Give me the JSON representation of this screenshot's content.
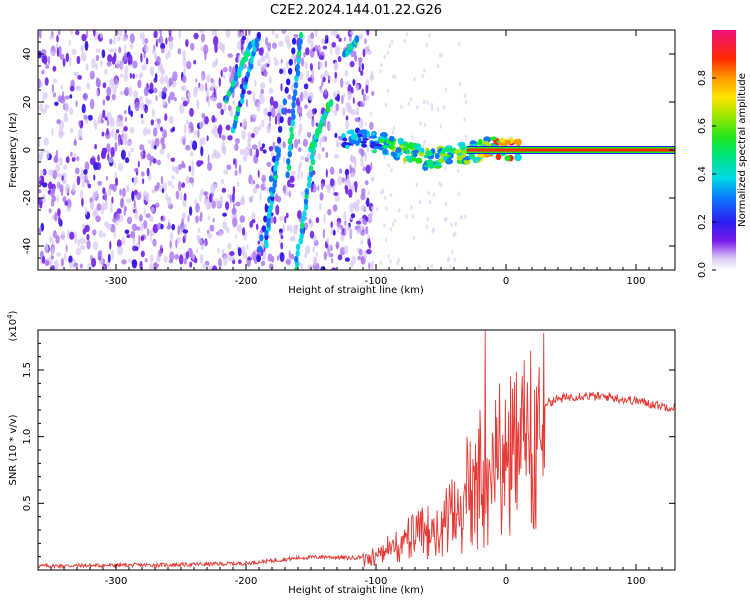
{
  "title": "C2E2.2024.144.01.22.G26",
  "chart_data": [
    {
      "type": "heatmap",
      "xlabel": "Height of straight line (km)",
      "ylabel": "Frequency (Hz)",
      "xlim": [
        -360,
        130
      ],
      "ylim": [
        -50,
        50
      ],
      "x_ticks": [
        -300,
        -200,
        -100,
        0,
        100
      ],
      "x_tick_labels": [
        "-300",
        "-200",
        "-100",
        "0",
        "100"
      ],
      "y_ticks": [
        -40,
        -20,
        0,
        20,
        40
      ],
      "y_tick_labels": [
        "-40",
        "-20",
        "0",
        "20",
        "40"
      ],
      "colorbar": {
        "label": "Normalized spectral amplitude",
        "range": [
          0,
          1
        ],
        "ticks": [
          0,
          0.2,
          0.4,
          0.6,
          0.8
        ],
        "tick_labels": [
          "0.0",
          "0.2",
          "0.4",
          "0.6",
          "0.8"
        ]
      },
      "noise_region_x": [
        -360,
        -110
      ],
      "streaks": [
        {
          "x1": -215,
          "y1": 21,
          "x2": -195,
          "y2": 45,
          "amp": 0.35
        },
        {
          "x1": -210,
          "y1": 8,
          "x2": -190,
          "y2": 48,
          "amp": 0.3
        },
        {
          "x1": -190,
          "y1": -45,
          "x2": -163,
          "y2": 45,
          "amp": 0.2
        },
        {
          "x1": -185,
          "y1": -40,
          "x2": -175,
          "y2": 0,
          "amp": 0.3
        },
        {
          "x1": -162,
          "y1": -50,
          "x2": -147,
          "y2": 2,
          "amp": 0.35
        },
        {
          "x1": -168,
          "y1": -10,
          "x2": -158,
          "y2": 48,
          "amp": 0.35
        },
        {
          "x1": -150,
          "y1": 0,
          "x2": -135,
          "y2": 20,
          "amp": 0.4
        },
        {
          "x1": -124,
          "y1": 40,
          "x2": -114,
          "y2": 46,
          "amp": 0.35
        }
      ],
      "signal_track": [
        {
          "x": -125,
          "y": 5,
          "amp": 0.3
        },
        {
          "x": -110,
          "y": 4,
          "amp": 0.35
        },
        {
          "x": -100,
          "y": 3,
          "amp": 0.4
        },
        {
          "x": -90,
          "y": 2,
          "amp": 0.45
        },
        {
          "x": -80,
          "y": 0,
          "amp": 0.5
        },
        {
          "x": -70,
          "y": -2,
          "amp": 0.5
        },
        {
          "x": -60,
          "y": -4,
          "amp": 0.5
        },
        {
          "x": -50,
          "y": -3,
          "amp": 0.55
        },
        {
          "x": -40,
          "y": -2,
          "amp": 0.55
        },
        {
          "x": -30,
          "y": -1,
          "amp": 0.6
        },
        {
          "x": -20,
          "y": 0,
          "amp": 0.65
        },
        {
          "x": -10,
          "y": 1,
          "amp": 0.7
        },
        {
          "x": 0,
          "y": 0,
          "amp": 0.8
        },
        {
          "x": 10,
          "y": 0,
          "amp": 0.9
        }
      ],
      "carrier": {
        "x_start": -30,
        "x_end": 130,
        "y": 0,
        "amp": 0.95
      }
    },
    {
      "type": "line",
      "xlabel": "Height of straight line (km)",
      "ylabel": "SNR (10 * v/v)",
      "y_scale_label": "(x10",
      "y_scale_exp": "4",
      "xlim": [
        -360,
        130
      ],
      "ylim": [
        0,
        18000
      ],
      "x_ticks": [
        -300,
        -200,
        -100,
        0,
        100
      ],
      "x_tick_labels": [
        "-300",
        "-200",
        "-100",
        "0",
        "100"
      ],
      "y_ticks": [
        5000,
        10000,
        15000
      ],
      "y_tick_labels": [
        "0.5",
        "1.0",
        "1.5"
      ],
      "line_color": "#e53935",
      "series": [
        {
          "x": [
            -360,
            -300,
            -250,
            -200,
            -180,
            -160,
            -140,
            -120,
            -110,
            -100,
            -90,
            -80,
            -70,
            -60,
            -50,
            -40,
            -30,
            -25,
            -20,
            -15,
            -10,
            -5,
            0,
            10,
            20,
            30,
            40,
            50,
            60,
            70,
            80,
            90,
            100,
            110,
            120,
            130
          ],
          "values": [
            300,
            350,
            400,
            500,
            700,
            900,
            1000,
            900,
            1000,
            1500,
            2000,
            2500,
            3000,
            3500,
            4000,
            5000,
            6500,
            7000,
            8000,
            8500,
            9000,
            9500,
            10000,
            11000,
            12000,
            12500,
            12800,
            13000,
            13100,
            13000,
            13000,
            12800,
            12700,
            12500,
            12300,
            12200
          ],
          "spikes": [
            {
              "x": -16,
              "value": 18000
            },
            {
              "x": -30,
              "value": 10000
            },
            {
              "x": -20,
              "value": 12000
            },
            {
              "x": -5,
              "value": 14000
            },
            {
              "x": 5,
              "value": 13600
            }
          ]
        }
      ]
    }
  ]
}
